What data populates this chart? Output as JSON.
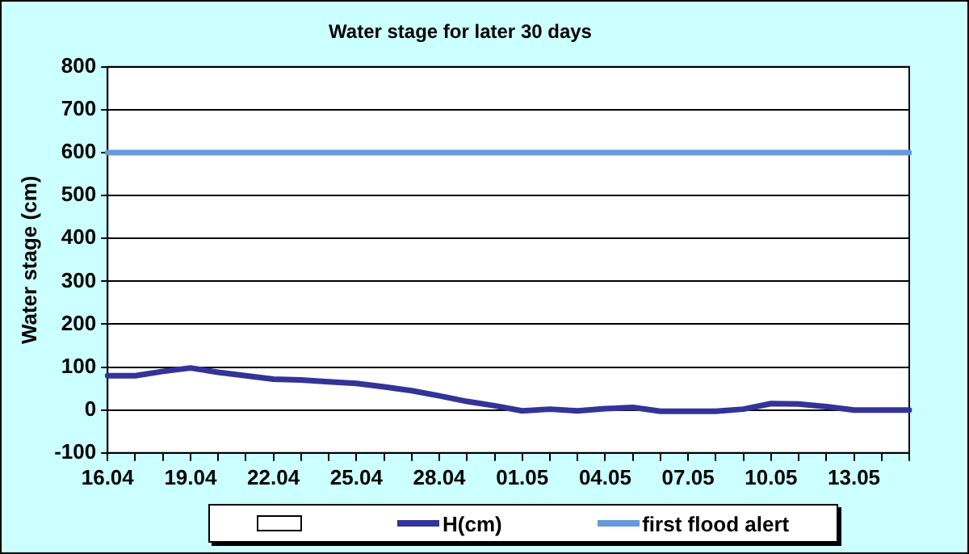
{
  "chart_data": {
    "type": "line",
    "title": "Water stage for later 30 days",
    "ylabel": "Water stage (cm)",
    "categories": [
      "16.04",
      null,
      null,
      "19.04",
      null,
      null,
      "22.04",
      null,
      null,
      "25.04",
      null,
      null,
      "28.04",
      null,
      null,
      "01.05",
      null,
      null,
      "04.05",
      null,
      null,
      "07.05",
      null,
      null,
      "10.05",
      null,
      null,
      "13.05",
      null,
      null
    ],
    "series": [
      {
        "name": "H(cm)",
        "color": "#333399",
        "values": [
          80,
          80,
          90,
          98,
          88,
          80,
          72,
          70,
          66,
          62,
          54,
          45,
          33,
          20,
          10,
          -2,
          2,
          -2,
          3,
          6,
          -3,
          -3,
          -3,
          2,
          15,
          14,
          8,
          0,
          0,
          0
        ]
      },
      {
        "name": "first flood alert",
        "color": "#6699dd",
        "values": [
          600,
          600,
          600,
          600,
          600,
          600,
          600,
          600,
          600,
          600,
          600,
          600,
          600,
          600,
          600,
          600,
          600,
          600,
          600,
          600,
          600,
          600,
          600,
          600,
          600,
          600,
          600,
          600,
          600,
          600
        ]
      }
    ],
    "ylim": [
      -100,
      800
    ],
    "yticks": [
      -100,
      0,
      100,
      200,
      300,
      400,
      500,
      600,
      700,
      800
    ],
    "grid": "y",
    "legend": "bottom",
    "marker": "none",
    "line_style": "solid"
  }
}
